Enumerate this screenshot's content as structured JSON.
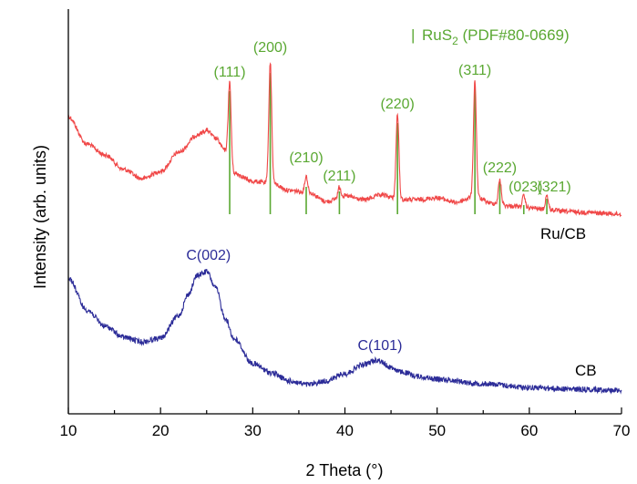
{
  "chart_data": {
    "type": "line",
    "xlabel": "2 Theta (°)",
    "ylabel": "Intensity (arb. units)",
    "xlim": [
      10,
      70
    ],
    "x_ticks": [
      "10",
      "20",
      "30",
      "40",
      "50",
      "60",
      "70"
    ],
    "y_ticks": [],
    "grid": false,
    "legend": {
      "placement": "top-right",
      "marker": "|",
      "text_main": "RuS",
      "text_sub": "2",
      "text_tail": " (PDF#80-0669)",
      "color": "#5aa832"
    },
    "series": [
      {
        "name": "Ru/CB",
        "color": "#f04848",
        "profile": {
          "x": [
            10,
            12,
            14,
            16,
            18,
            20,
            22,
            24,
            25,
            26,
            27,
            28,
            30,
            32,
            34,
            36,
            38,
            40,
            42,
            44,
            46,
            48,
            50,
            52,
            54,
            56,
            58,
            60,
            62,
            64,
            66,
            68,
            70
          ],
          "y": [
            128,
            158,
            170,
            186,
            196,
            188,
            167,
            148,
            143,
            152,
            165,
            190,
            199,
            201,
            209,
            211,
            221,
            215,
            219,
            214,
            219,
            219,
            217,
            222,
            216,
            223,
            226,
            228,
            230,
            232,
            233,
            234,
            235
          ]
        },
        "peaks": [
          {
            "x": 27.5,
            "y": 90,
            "label": "(111)"
          },
          {
            "x": 31.9,
            "y": 68,
            "label": "(200)"
          },
          {
            "x": 35.8,
            "y": 193,
            "label": "(210)"
          },
          {
            "x": 39.4,
            "y": 205,
            "label": "(211)"
          },
          {
            "x": 45.7,
            "y": 125,
            "label": "(220)"
          },
          {
            "x": 54.1,
            "y": 88,
            "label": "(311)"
          },
          {
            "x": 56.8,
            "y": 197,
            "label": "(222)"
          },
          {
            "x": 59.4,
            "y": 215,
            "label": "(023)"
          },
          {
            "x": 61.9,
            "y": 214,
            "label": "(321)"
          }
        ]
      },
      {
        "name": "CB",
        "color": "#2c2c98",
        "profile": {
          "x": [
            10,
            12,
            14,
            16,
            18,
            20,
            22,
            23,
            24,
            25,
            26,
            27,
            28,
            30,
            32,
            34,
            36,
            38,
            40,
            42,
            43.5,
            45,
            46,
            48,
            50,
            55,
            60,
            65,
            70
          ],
          "y": [
            305,
            340,
            358,
            370,
            375,
            371,
            346,
            323,
            302,
            298,
            316,
            349,
            372,
            399,
            409,
            418,
            422,
            418,
            410,
            400,
            395,
            403,
            408,
            413,
            416,
            421,
            425,
            427,
            428
          ]
        }
      }
    ],
    "reference_lines": [
      {
        "x": 27.5,
        "y_top": 100
      },
      {
        "x": 31.9,
        "y_top": 80
      },
      {
        "x": 35.8,
        "y_top": 205
      },
      {
        "x": 39.4,
        "y_top": 210
      },
      {
        "x": 45.7,
        "y_top": 135
      },
      {
        "x": 54.1,
        "y_top": 96
      },
      {
        "x": 56.8,
        "y_top": 200
      },
      {
        "x": 59.4,
        "y_top": 225
      },
      {
        "x": 61.9,
        "y_top": 218
      }
    ],
    "ref_y_bottom": 235,
    "annotations": [
      {
        "text": "C(002)",
        "color": "#2c2c98",
        "x": 25.2
      },
      {
        "text": "C(101)",
        "color": "#2c2c98",
        "x": 43.8
      }
    ],
    "series_labels": [
      "Ru/CB",
      "CB"
    ]
  }
}
